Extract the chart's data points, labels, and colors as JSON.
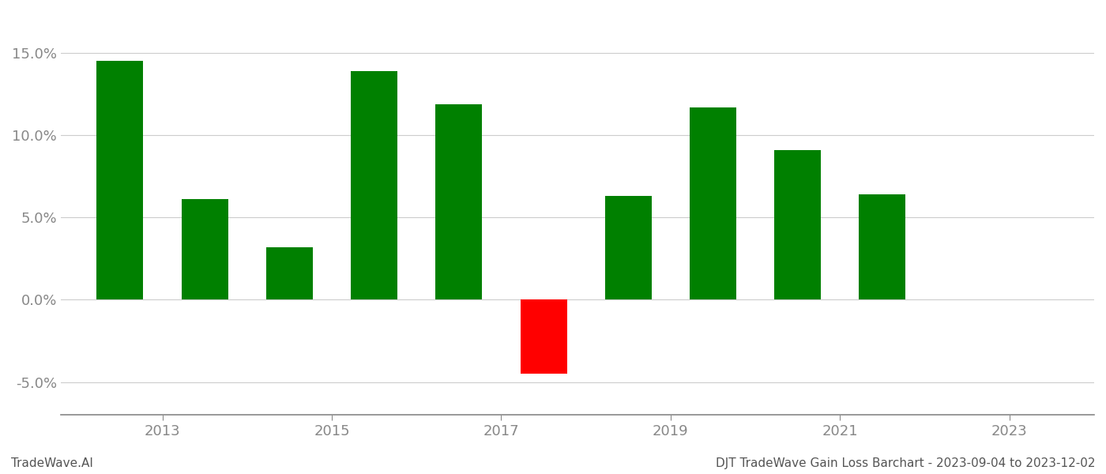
{
  "years": [
    2012.5,
    2013.5,
    2014.5,
    2015.5,
    2016.5,
    2017.5,
    2018.5,
    2019.5,
    2020.5,
    2021.5
  ],
  "values": [
    0.145,
    0.061,
    0.032,
    0.139,
    0.119,
    -0.045,
    0.063,
    0.117,
    0.091,
    0.064
  ],
  "colors": [
    "#008000",
    "#008000",
    "#008000",
    "#008000",
    "#008000",
    "#ff0000",
    "#008000",
    "#008000",
    "#008000",
    "#008000"
  ],
  "ylim": [
    -0.07,
    0.175
  ],
  "yticks": [
    -0.05,
    0.0,
    0.05,
    0.1,
    0.15
  ],
  "xticks": [
    2013,
    2015,
    2017,
    2019,
    2021,
    2023
  ],
  "xlim": [
    2011.8,
    2024.0
  ],
  "xlabel_fontsize": 13,
  "ylabel_fontsize": 13,
  "tick_color": "#aaaaaa",
  "grid_color": "#cccccc",
  "bar_width": 0.55,
  "bottom_left_text": "TradeWave.AI",
  "bottom_right_text": "DJT TradeWave Gain Loss Barchart - 2023-09-04 to 2023-12-02",
  "background_color": "#ffffff",
  "spine_color": "#888888"
}
